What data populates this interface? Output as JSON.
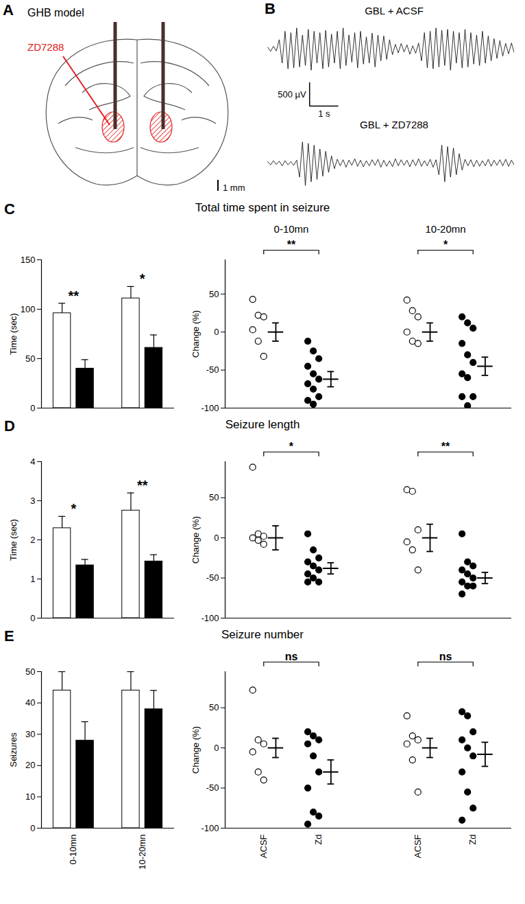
{
  "chart_data": [
    {
      "panel": "A",
      "type": "diagram",
      "title": "GHB model",
      "annotations": [
        "ZD7288"
      ],
      "scale_bar": {
        "value": 1,
        "label": "1 mm"
      }
    },
    {
      "panel": "B",
      "type": "line",
      "tick_labels": false,
      "x": [
        0,
        0.1,
        0.2,
        0.3,
        0.4,
        0.5,
        0.6,
        0.7,
        0.8,
        0.9,
        1,
        1.1,
        1.2,
        1.3,
        1.4,
        1.5,
        1.6,
        1.7,
        1.8,
        1.9,
        2,
        2.1,
        2.2,
        2.3,
        2.4,
        2.5,
        2.6,
        2.7,
        2.8,
        2.9,
        3,
        3.1,
        3.2,
        3.3,
        3.4,
        3.5,
        3.6,
        3.7,
        3.8,
        3.9,
        4,
        4.1,
        4.2,
        4.3,
        4.4,
        4.5,
        4.6,
        4.7,
        4.8,
        4.9,
        5,
        5.1,
        5.2,
        5.3,
        5.4,
        5.5,
        5.6,
        5.7,
        5.8,
        5.9,
        6,
        6.1,
        6.2,
        6.3,
        6.4,
        6.5,
        6.6,
        6.7,
        6.8,
        6.9,
        7,
        7.1,
        7.2,
        7.3,
        7.4,
        7.5,
        7.6,
        7.7,
        7.8,
        7.9,
        8,
        8.1,
        8.2,
        8.3,
        8.4,
        8.5
      ],
      "xlim": [
        0,
        8.5
      ],
      "ylim": [
        -600,
        600
      ],
      "series": [
        {
          "name": "GBL + ACSF",
          "color": "#000000",
          "values": [
            40,
            -50,
            60,
            -40,
            200,
            -300,
            380,
            -420,
            350,
            -400,
            450,
            -380,
            300,
            -350,
            420,
            -450,
            380,
            -300,
            350,
            -420,
            400,
            -380,
            320,
            -300,
            380,
            -420,
            450,
            -350,
            300,
            -280,
            350,
            -400,
            380,
            -320,
            260,
            -300,
            340,
            -380,
            300,
            -250,
            280,
            -220,
            200,
            -120,
            100,
            -80,
            120,
            -60,
            90,
            -110,
            70,
            -90,
            130,
            -250,
            350,
            -400,
            380,
            -420,
            450,
            -380,
            400,
            -350,
            420,
            -450,
            380,
            -300,
            350,
            -400,
            420,
            -380,
            350,
            -320,
            300,
            -350,
            380,
            -300,
            280,
            -250,
            220,
            -200,
            180,
            -150,
            120,
            -100,
            130,
            -90
          ]
        },
        {
          "name": "GBL + ZD7288",
          "color": "#000000",
          "values": [
            30,
            -40,
            50,
            -30,
            40,
            -60,
            50,
            -40,
            30,
            -50,
            60,
            -300,
            450,
            -480,
            420,
            -400,
            380,
            -350,
            300,
            -280,
            250,
            -200,
            150,
            -120,
            80,
            -60,
            70,
            -90,
            60,
            -50,
            90,
            -70,
            60,
            -80,
            50,
            -60,
            70,
            -50,
            80,
            -90,
            60,
            -70,
            50,
            -80,
            90,
            -60,
            70,
            -50,
            60,
            -80,
            70,
            -60,
            90,
            -70,
            50,
            -60,
            80,
            -90,
            70,
            -250,
            380,
            -400,
            350,
            -300,
            320,
            -250,
            200,
            -150,
            80,
            -60,
            70,
            -80,
            60,
            -70,
            50,
            -60,
            80,
            -70,
            60,
            -50,
            70,
            -60,
            80,
            -70,
            60,
            -50
          ]
        }
      ],
      "scale_bar": {
        "x": 1,
        "x_label": "1 s",
        "y": 500,
        "y_label": "500 µV"
      }
    },
    {
      "panel": "C",
      "type": "bar",
      "title": "Total time spent in seizure",
      "y_label": "Time (sec)",
      "categories": [
        null,
        null
      ],
      "tick_labels": "y",
      "series": [
        {
          "color": "#ffffff",
          "values": [
            96,
            111
          ],
          "errors": [
            10,
            12
          ]
        },
        {
          "color": "#000000",
          "values": [
            40,
            61
          ],
          "errors": [
            9,
            13
          ]
        }
      ],
      "ylim": [
        0,
        150
      ],
      "yticks": [
        0,
        50,
        100,
        150
      ],
      "significance": [
        "**",
        "*"
      ]
    },
    {
      "type": "scatter",
      "y_label": "Change (%)",
      "categories": [
        null,
        null,
        null,
        null
      ],
      "tick_labels": "y",
      "group_labels": [
        "0-10mn",
        "10-20mn"
      ],
      "colors": [
        "#ffffff",
        "#000000",
        "#ffffff",
        "#000000"
      ],
      "marker": "circle",
      "points": [
        [
          43,
          22,
          20,
          3,
          -12,
          -32
        ],
        [
          -12,
          -25,
          -35,
          -45,
          -55,
          -62,
          -68,
          -75,
          -85,
          -90,
          -95
        ],
        [
          42,
          28,
          20,
          0,
          -12,
          -15
        ],
        [
          20,
          12,
          5,
          -15,
          -30,
          -40,
          -55,
          -60,
          -85,
          -85,
          -97
        ]
      ],
      "means": [
        0,
        -62,
        0,
        -45
      ],
      "sems": [
        12,
        10,
        12,
        12
      ],
      "ylim": [
        -100,
        95
      ],
      "yticks": [
        50,
        0,
        -50,
        -100
      ],
      "comparisons": [
        {
          "between": [
            0,
            1
          ],
          "label": "**"
        },
        {
          "between": [
            2,
            3
          ],
          "label": "*"
        }
      ]
    },
    {
      "panel": "D",
      "type": "bar",
      "title": "Seizure length",
      "y_label": "Time (sec)",
      "categories": [
        null,
        null
      ],
      "tick_labels": "y",
      "series": [
        {
          "color": "#ffffff",
          "values": [
            2.3,
            2.75
          ],
          "errors": [
            0.3,
            0.45
          ]
        },
        {
          "color": "#000000",
          "values": [
            1.35,
            1.45
          ],
          "errors": [
            0.15,
            0.17
          ]
        }
      ],
      "ylim": [
        0,
        4
      ],
      "yticks": [
        0,
        1,
        2,
        3,
        4
      ],
      "significance": [
        "*",
        "**"
      ]
    },
    {
      "type": "scatter",
      "y_label": "Change (%)",
      "categories": [
        null,
        null,
        null,
        null
      ],
      "tick_labels": "y",
      "colors": [
        "#ffffff",
        "#000000",
        "#ffffff",
        "#000000"
      ],
      "marker": "circle",
      "points": [
        [
          88,
          5,
          2,
          0,
          -3,
          -8
        ],
        [
          5,
          -15,
          -25,
          -30,
          -35,
          -40,
          -45,
          -50,
          -55,
          -55
        ],
        [
          60,
          58,
          10,
          -5,
          -15,
          -40
        ],
        [
          5,
          -30,
          -35,
          -40,
          -45,
          -50,
          -55,
          -60,
          -60,
          -70
        ]
      ],
      "means": [
        0,
        -38,
        0,
        -50
      ],
      "sems": [
        15,
        7,
        17,
        7
      ],
      "ylim": [
        -100,
        95
      ],
      "yticks": [
        50,
        0,
        -50,
        -100
      ],
      "comparisons": [
        {
          "between": [
            0,
            1
          ],
          "label": "*"
        },
        {
          "between": [
            2,
            3
          ],
          "label": "**"
        }
      ]
    },
    {
      "panel": "E",
      "type": "bar",
      "title": "Seizure number",
      "y_label": "Seizures",
      "categories": [
        "0-10mn",
        "10-20mn"
      ],
      "tick_labels": true,
      "series": [
        {
          "color": "#ffffff",
          "values": [
            44,
            44
          ],
          "errors": [
            6,
            6
          ]
        },
        {
          "color": "#000000",
          "values": [
            28,
            38
          ],
          "errors": [
            6,
            6
          ]
        }
      ],
      "ylim": [
        0,
        50
      ],
      "yticks": [
        0,
        10,
        20,
        30,
        40,
        50
      ]
    },
    {
      "type": "scatter",
      "y_label": "Change (%)",
      "categories": [
        "ACSF",
        "Zd",
        "ACSF",
        "Zd"
      ],
      "tick_labels": true,
      "colors": [
        "#ffffff",
        "#000000",
        "#ffffff",
        "#000000"
      ],
      "marker": "circle",
      "points": [
        [
          72,
          10,
          5,
          -5,
          -30,
          -40
        ],
        [
          20,
          15,
          10,
          5,
          -10,
          -30,
          -50,
          -80,
          -85,
          -95
        ],
        [
          40,
          15,
          10,
          5,
          -15,
          -55
        ],
        [
          45,
          40,
          20,
          10,
          0,
          -10,
          -30,
          -55,
          -75,
          -90
        ]
      ],
      "means": [
        0,
        -30,
        0,
        -8
      ],
      "sems": [
        12,
        15,
        12,
        15
      ],
      "ylim": [
        -100,
        95
      ],
      "yticks": [
        50,
        0,
        -50,
        -100
      ],
      "comparisons": [
        {
          "between": [
            0,
            1
          ],
          "label": "ns"
        },
        {
          "between": [
            2,
            3
          ],
          "label": "ns"
        }
      ]
    }
  ]
}
